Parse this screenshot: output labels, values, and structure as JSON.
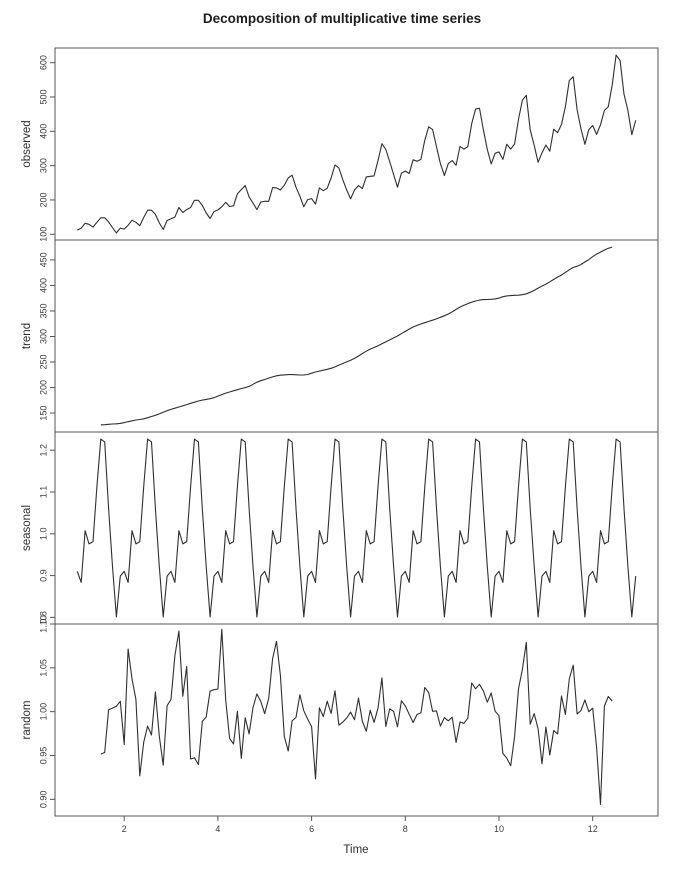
{
  "chart_data": {
    "type": "line",
    "title": "Decomposition of multiplicative time series",
    "xlabel": "Time",
    "frequency": 12,
    "start_time": 1,
    "xlim": [
      0.5233,
      13.3933
    ],
    "xticks": [
      2,
      4,
      6,
      8,
      10,
      12
    ],
    "xtick_labels": [
      "2",
      "4",
      "6",
      "8",
      "10",
      "12"
    ],
    "grid": false,
    "legend": false,
    "colors": {
      "line": "#2f2f2f",
      "frame": "#555555",
      "text": "#3c3c3c",
      "background": "#ffffff"
    },
    "panels": [
      {
        "name": "observed",
        "ylabel": "observed",
        "ylim": [
          83.3,
          642.7
        ],
        "yticks": [
          100,
          200,
          300,
          400,
          500,
          600
        ],
        "ytick_labels": [
          "100",
          "200",
          "300",
          "400",
          "500",
          "600"
        ]
      },
      {
        "name": "trend",
        "ylabel": "trend",
        "ylim": [
          112.9,
          489.0
        ],
        "yticks": [
          150,
          200,
          250,
          300,
          350,
          400,
          450
        ],
        "ytick_labels": [
          "150",
          "200",
          "250",
          "300",
          "350",
          "400",
          "450"
        ]
      },
      {
        "name": "seasonal",
        "ylabel": "seasonal",
        "ylim": [
          0.78416,
          1.24357
        ],
        "yticks": [
          0.8,
          0.9,
          1.0,
          1.1,
          1.2
        ],
        "ytick_labels": [
          "0.8",
          "0.9",
          "1.0",
          "1.1",
          "1.2"
        ]
      },
      {
        "name": "random",
        "ylabel": "random",
        "ylim": [
          0.881,
          1.1
        ],
        "yticks": [
          0.9,
          0.95,
          1.0,
          1.05,
          1.1
        ],
        "ytick_labels": [
          "0.90",
          "0.95",
          "1.00",
          "1.05",
          "1.10"
        ]
      }
    ],
    "observed": [
      112,
      118,
      132,
      129,
      121,
      135,
      148,
      148,
      136,
      119,
      104,
      118,
      115,
      126,
      141,
      135,
      125,
      149,
      170,
      170,
      158,
      133,
      114,
      140,
      145,
      150,
      178,
      163,
      172,
      178,
      199,
      199,
      184,
      162,
      146,
      166,
      171,
      180,
      193,
      181,
      183,
      218,
      230,
      242,
      209,
      191,
      172,
      194,
      196,
      196,
      236,
      235,
      229,
      243,
      264,
      272,
      237,
      211,
      180,
      201,
      204,
      188,
      235,
      227,
      234,
      264,
      302,
      293,
      259,
      229,
      203,
      229,
      242,
      233,
      267,
      269,
      270,
      315,
      364,
      347,
      312,
      274,
      237,
      278,
      284,
      277,
      317,
      313,
      318,
      374,
      413,
      405,
      355,
      306,
      271,
      306,
      315,
      301,
      356,
      348,
      355,
      422,
      465,
      467,
      404,
      347,
      305,
      336,
      340,
      318,
      362,
      348,
      363,
      435,
      491,
      505,
      404,
      359,
      310,
      337,
      360,
      342,
      406,
      396,
      420,
      472,
      548,
      559,
      463,
      407,
      362,
      405,
      417,
      391,
      419,
      461,
      472,
      535,
      622,
      606,
      508,
      461,
      390,
      432
    ],
    "seasonal_indices": [
      0.91023,
      0.88363,
      1.00737,
      0.97591,
      0.98138,
      1.11278,
      1.22656,
      1.21991,
      1.06049,
      0.92176,
      0.80118,
      0.89882
    ],
    "derived_series": {
      "trend": "centered 12-period moving average of observed (defined Jul yr1 through Jun yr12)",
      "random": "observed / (trend * seasonal)"
    }
  }
}
